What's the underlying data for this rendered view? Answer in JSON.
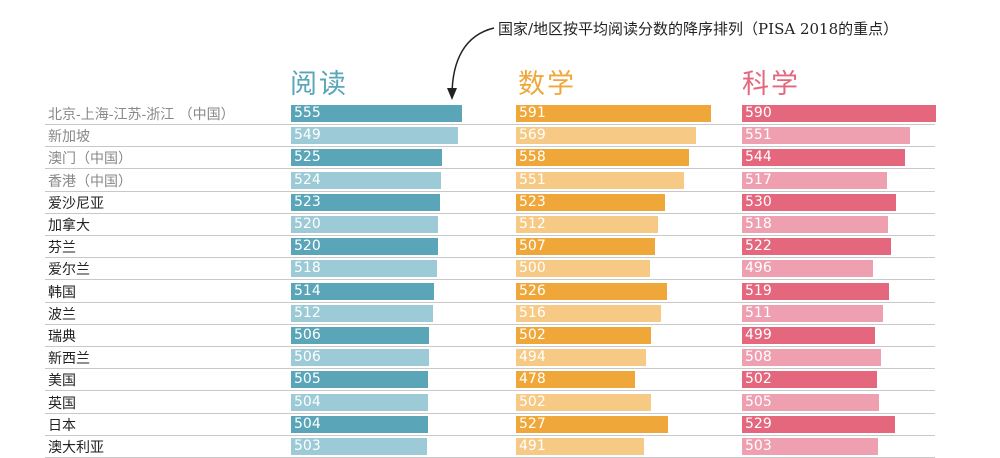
{
  "annotation": "国家/地区按平均阅读分数的降序排列（PISA 2018的重点）",
  "chart_data": {
    "type": "bar",
    "title": "国家/地区按平均阅读分数的降序排列（PISA 2018的重点）",
    "categories": [
      "北京-上海-江苏-浙江 （中国）",
      "新加坡",
      "澳门（中国）",
      "香港（中国）",
      "爱沙尼亚",
      "加拿大",
      "芬兰",
      "爱尔兰",
      "韩国",
      "波兰",
      "瑞典",
      "新西兰",
      "美国",
      "英国",
      "日本",
      "澳大利亚"
    ],
    "series": [
      {
        "name": "阅读",
        "color": "#5aa5b8",
        "light": "#9ccad6",
        "values": [
          555,
          549,
          525,
          524,
          523,
          520,
          520,
          518,
          514,
          512,
          506,
          506,
          505,
          504,
          504,
          503
        ]
      },
      {
        "name": "数学",
        "color": "#f0a73a",
        "light": "#f6c985",
        "values": [
          591,
          569,
          558,
          551,
          523,
          512,
          507,
          500,
          526,
          516,
          502,
          494,
          478,
          502,
          527,
          491
        ]
      },
      {
        "name": "科学",
        "color": "#e4677e",
        "light": "#eea0b0",
        "values": [
          590,
          551,
          544,
          517,
          530,
          518,
          522,
          496,
          519,
          511,
          499,
          508,
          502,
          505,
          529,
          503
        ]
      }
    ]
  }
}
